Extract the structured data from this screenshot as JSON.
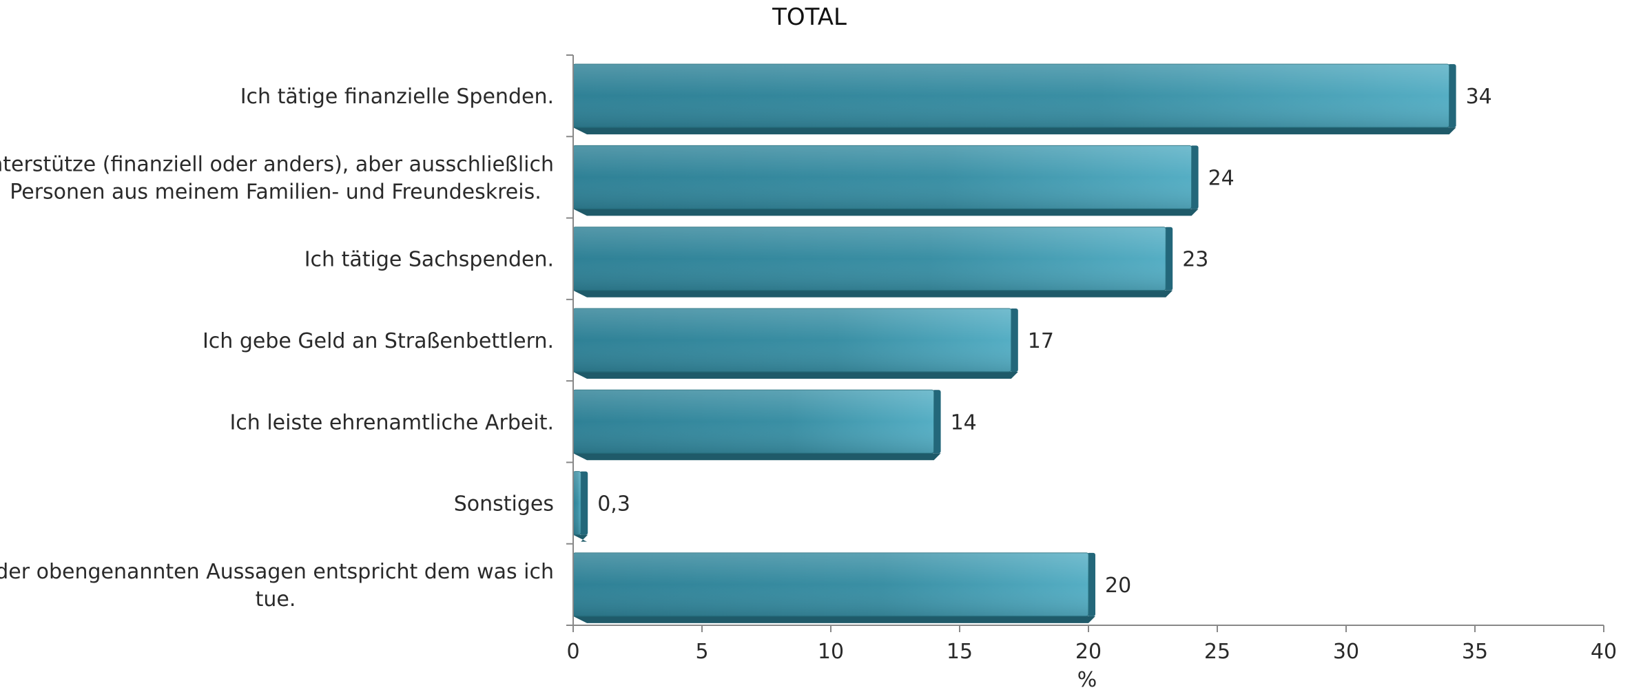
{
  "chart_data": {
    "type": "bar",
    "orientation": "horizontal",
    "title": "TOTAL",
    "xlabel": "%",
    "ylabel": "",
    "xlim": [
      0,
      40
    ],
    "x_ticks": [
      0,
      5,
      10,
      15,
      20,
      25,
      30,
      35,
      40
    ],
    "grid": false,
    "legend": "none",
    "bar_color": "#3a8ea3",
    "categories": [
      [
        "Ich tätige finanzielle Spenden."
      ],
      [
        "Ich unterstütze (finanziell oder anders), aber ausschließlich",
        "Personen aus meinem Familien- und Freundeskreis."
      ],
      [
        "Ich tätige Sachspenden."
      ],
      [
        "Ich gebe Geld an Straßenbettlern."
      ],
      [
        "Ich leiste ehrenamtliche Arbeit."
      ],
      [
        "Sonstiges"
      ],
      [
        "Keine der obengenannten Aussagen entspricht dem was ich",
        "tue."
      ]
    ],
    "values": [
      34,
      24,
      23,
      17,
      14,
      0.3,
      20
    ],
    "value_labels": [
      "34",
      "24",
      "23",
      "17",
      "14",
      "0,3",
      "20"
    ]
  }
}
